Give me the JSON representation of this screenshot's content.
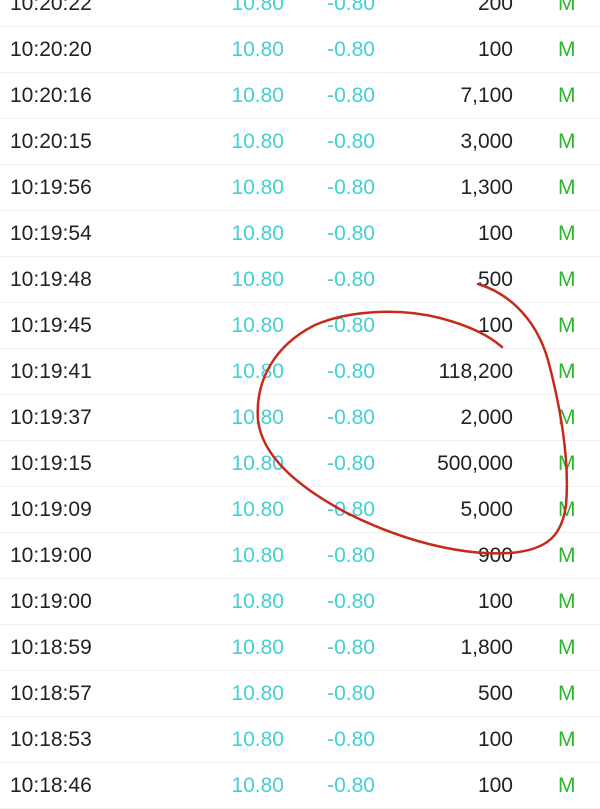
{
  "colors": {
    "price": "#45cfd2",
    "change": "#45cfd2",
    "flag": "#2eb52e",
    "annotation": "#c62a1a"
  },
  "trades": [
    {
      "time": "10:20:22",
      "price": "10.80",
      "change": "-0.80",
      "volume": "200",
      "flag": "M"
    },
    {
      "time": "10:20:20",
      "price": "10.80",
      "change": "-0.80",
      "volume": "100",
      "flag": "M"
    },
    {
      "time": "10:20:16",
      "price": "10.80",
      "change": "-0.80",
      "volume": "7,100",
      "flag": "M"
    },
    {
      "time": "10:20:15",
      "price": "10.80",
      "change": "-0.80",
      "volume": "3,000",
      "flag": "M"
    },
    {
      "time": "10:19:56",
      "price": "10.80",
      "change": "-0.80",
      "volume": "1,300",
      "flag": "M"
    },
    {
      "time": "10:19:54",
      "price": "10.80",
      "change": "-0.80",
      "volume": "100",
      "flag": "M"
    },
    {
      "time": "10:19:48",
      "price": "10.80",
      "change": "-0.80",
      "volume": "500",
      "flag": "M"
    },
    {
      "time": "10:19:45",
      "price": "10.80",
      "change": "-0.80",
      "volume": "100",
      "flag": "M"
    },
    {
      "time": "10:19:41",
      "price": "10.80",
      "change": "-0.80",
      "volume": "118,200",
      "flag": "M"
    },
    {
      "time": "10:19:37",
      "price": "10.80",
      "change": "-0.80",
      "volume": "2,000",
      "flag": "M"
    },
    {
      "time": "10:19:15",
      "price": "10.80",
      "change": "-0.80",
      "volume": "500,000",
      "flag": "M"
    },
    {
      "time": "10:19:09",
      "price": "10.80",
      "change": "-0.80",
      "volume": "5,000",
      "flag": "M"
    },
    {
      "time": "10:19:00",
      "price": "10.80",
      "change": "-0.80",
      "volume": "900",
      "flag": "M"
    },
    {
      "time": "10:19:00",
      "price": "10.80",
      "change": "-0.80",
      "volume": "100",
      "flag": "M"
    },
    {
      "time": "10:18:59",
      "price": "10.80",
      "change": "-0.80",
      "volume": "1,800",
      "flag": "M"
    },
    {
      "time": "10:18:57",
      "price": "10.80",
      "change": "-0.80",
      "volume": "500",
      "flag": "M"
    },
    {
      "time": "10:18:53",
      "price": "10.80",
      "change": "-0.80",
      "volume": "100",
      "flag": "M"
    },
    {
      "time": "10:18:46",
      "price": "10.80",
      "change": "-0.80",
      "volume": "100",
      "flag": "M"
    }
  ]
}
